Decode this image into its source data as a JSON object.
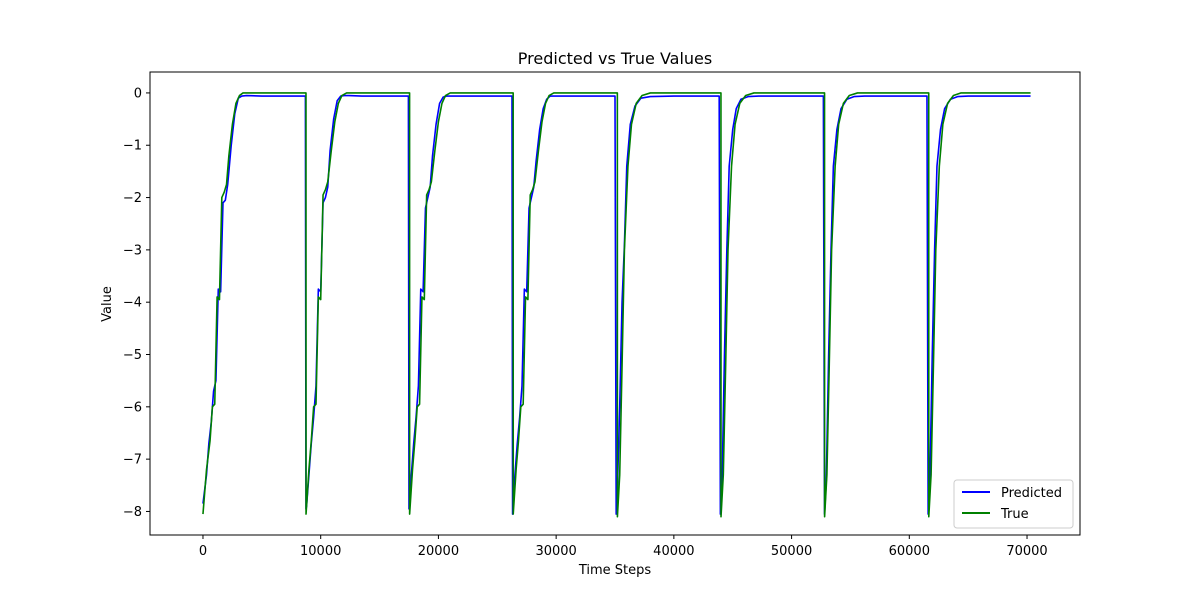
{
  "chart_data": {
    "type": "line",
    "title": "Predicted vs True Values",
    "xlabel": "Time Steps",
    "ylabel": "Value",
    "xlim": [
      -4500,
      74500
    ],
    "ylim": [
      -8.45,
      0.4
    ],
    "xticks": [
      0,
      10000,
      20000,
      30000,
      40000,
      50000,
      60000,
      70000
    ],
    "xtick_labels": [
      "0",
      "10000",
      "20000",
      "30000",
      "40000",
      "50000",
      "60000",
      "70000"
    ],
    "yticks": [
      0,
      -1,
      -2,
      -3,
      -4,
      -5,
      -6,
      -7,
      -8
    ],
    "ytick_labels": [
      "0",
      "−1",
      "−2",
      "−3",
      "−4",
      "−5",
      "−6",
      "−7",
      "−8"
    ],
    "grid": false,
    "legend_position": "bottom-right",
    "series": [
      {
        "name": "Predicted",
        "color": "#0000ff",
        "x": [
          0,
          300,
          500,
          700,
          900,
          1100,
          1300,
          1500,
          1700,
          1900,
          2100,
          2400,
          2700,
          3000,
          3300,
          3700,
          5000,
          6000,
          6500,
          8700,
          8750,
          8800,
          9000,
          9200,
          9400,
          9600,
          9800,
          10000,
          10200,
          10400,
          10600,
          10800,
          11100,
          11400,
          11700,
          12000,
          12400,
          13500,
          14800,
          16000,
          17450,
          17500,
          17550,
          17700,
          17900,
          18100,
          18300,
          18500,
          18700,
          18900,
          19100,
          19300,
          19500,
          19800,
          20100,
          20400,
          20700,
          21100,
          22500,
          23800,
          25000,
          26250,
          26300,
          26350,
          26500,
          26700,
          26900,
          27100,
          27300,
          27500,
          27700,
          27900,
          28100,
          28300,
          28600,
          28900,
          29200,
          29500,
          29900,
          31500,
          33000,
          35000,
          35100,
          35200,
          35400,
          35600,
          35800,
          36000,
          36300,
          36700,
          37200,
          38000,
          40000,
          42000,
          43850,
          43950,
          44100,
          44300,
          44500,
          44700,
          45000,
          45300,
          45700,
          46300,
          47200,
          49000,
          51000,
          52700,
          52800,
          52950,
          53150,
          53350,
          53550,
          53850,
          54200,
          54700,
          55300,
          56200,
          58000,
          60000,
          61500,
          61600,
          61750,
          61950,
          62150,
          62350,
          62650,
          63000,
          63500,
          64100,
          65000,
          67000,
          70300
        ],
        "y": [
          -7.85,
          -7.3,
          -6.7,
          -6.3,
          -5.7,
          -5.5,
          -3.75,
          -3.8,
          -2.1,
          -2.05,
          -1.75,
          -1.0,
          -0.4,
          -0.1,
          -0.06,
          -0.05,
          -0.06,
          -0.06,
          -0.06,
          -0.06,
          -7.95,
          -7.9,
          -7.3,
          -6.7,
          -6.2,
          -5.6,
          -3.75,
          -3.8,
          -2.1,
          -2.0,
          -1.8,
          -1.1,
          -0.5,
          -0.15,
          -0.06,
          -0.05,
          -0.05,
          -0.06,
          -0.06,
          -0.06,
          -0.06,
          -7.95,
          -7.9,
          -7.3,
          -6.7,
          -6.2,
          -5.6,
          -3.75,
          -3.8,
          -2.2,
          -2.0,
          -1.8,
          -1.2,
          -0.6,
          -0.2,
          -0.08,
          -0.06,
          -0.06,
          -0.06,
          -0.06,
          -0.06,
          -0.06,
          -8.05,
          -7.9,
          -7.3,
          -6.7,
          -6.2,
          -5.6,
          -3.75,
          -3.8,
          -2.2,
          -2.0,
          -1.8,
          -1.3,
          -0.7,
          -0.3,
          -0.12,
          -0.06,
          -0.06,
          -0.06,
          -0.06,
          -0.06,
          -8.05,
          -7.6,
          -6.0,
          -4.0,
          -2.9,
          -1.4,
          -0.6,
          -0.25,
          -0.1,
          -0.07,
          -0.06,
          -0.06,
          -0.06,
          -8.05,
          -7.4,
          -5.0,
          -3.0,
          -1.4,
          -0.7,
          -0.3,
          -0.12,
          -0.07,
          -0.06,
          -0.06,
          -0.06,
          -0.06,
          -8.05,
          -7.4,
          -5.0,
          -3.0,
          -1.4,
          -0.7,
          -0.3,
          -0.12,
          -0.07,
          -0.06,
          -0.06,
          -0.06,
          -0.06,
          -8.05,
          -7.4,
          -5.0,
          -3.0,
          -1.4,
          -0.7,
          -0.3,
          -0.12,
          -0.07,
          -0.06,
          -0.06,
          -0.06
        ]
      },
      {
        "name": "True",
        "color": "#008000",
        "x": [
          0,
          300,
          600,
          800,
          1000,
          1200,
          1400,
          1600,
          1800,
          2000,
          2200,
          2500,
          2800,
          3100,
          3400,
          3800,
          8750,
          8755,
          9000,
          9200,
          9400,
          9600,
          9800,
          10000,
          10200,
          10400,
          10600,
          10900,
          11200,
          11500,
          11800,
          12200,
          17550,
          17555,
          17800,
          18000,
          18200,
          18400,
          18600,
          18800,
          19000,
          19200,
          19400,
          19700,
          20000,
          20300,
          20600,
          21000,
          26350,
          26355,
          26600,
          26800,
          27000,
          27200,
          27400,
          27600,
          27800,
          28000,
          28200,
          28500,
          28800,
          29100,
          29400,
          29800,
          35200,
          35205,
          35400,
          35600,
          35800,
          36100,
          36400,
          36800,
          37300,
          38000,
          44000,
          44005,
          44200,
          44400,
          44600,
          44900,
          45200,
          45600,
          46100,
          46800,
          52800,
          52805,
          53000,
          53200,
          53400,
          53700,
          54000,
          54400,
          54900,
          55600,
          61650,
          61655,
          61850,
          62050,
          62250,
          62550,
          62850,
          63250,
          63750,
          64400,
          70300
        ],
        "y": [
          -8.05,
          -7.2,
          -6.65,
          -6.0,
          -5.95,
          -3.9,
          -3.95,
          -2.0,
          -1.9,
          -1.75,
          -1.2,
          -0.6,
          -0.2,
          -0.05,
          0.0,
          0.0,
          0.0,
          -8.05,
          -7.2,
          -6.65,
          -6.0,
          -5.95,
          -3.9,
          -3.95,
          -1.95,
          -1.85,
          -1.7,
          -1.1,
          -0.55,
          -0.2,
          -0.05,
          0.0,
          0.0,
          -8.05,
          -7.2,
          -6.65,
          -6.0,
          -5.95,
          -3.9,
          -3.95,
          -1.95,
          -1.85,
          -1.7,
          -1.1,
          -0.55,
          -0.2,
          -0.05,
          0.0,
          0.0,
          -8.05,
          -7.2,
          -6.65,
          -6.0,
          -5.95,
          -3.9,
          -3.95,
          -1.95,
          -1.85,
          -1.7,
          -1.1,
          -0.55,
          -0.2,
          -0.05,
          0.0,
          0.0,
          -8.1,
          -7.3,
          -5.2,
          -3.0,
          -1.4,
          -0.6,
          -0.2,
          -0.05,
          0.0,
          0.0,
          -8.1,
          -7.3,
          -5.2,
          -3.0,
          -1.4,
          -0.6,
          -0.2,
          -0.05,
          0.0,
          0.0,
          -8.1,
          -7.3,
          -5.2,
          -3.0,
          -1.4,
          -0.6,
          -0.2,
          -0.05,
          0.0,
          0.0,
          -8.1,
          -7.3,
          -5.2,
          -3.0,
          -1.4,
          -0.6,
          -0.2,
          -0.05,
          0.0,
          0.0
        ]
      }
    ]
  }
}
